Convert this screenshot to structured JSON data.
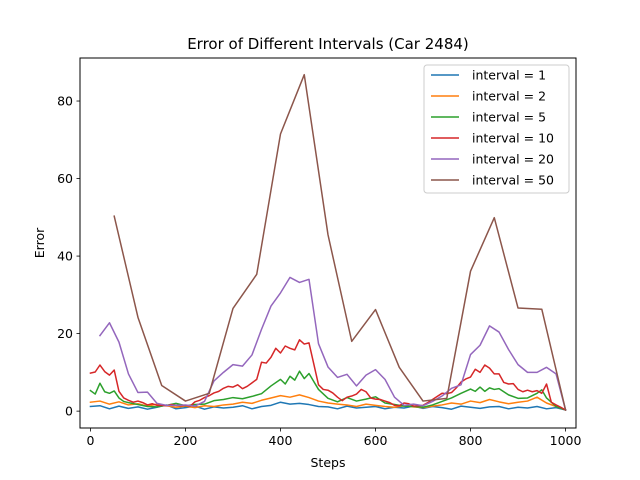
{
  "chart_data": {
    "type": "line",
    "title": "Error of Different Intervals (Car 2484)",
    "xlabel": "Steps",
    "ylabel": "Error",
    "xlim": [
      -22,
      1022
    ],
    "ylim": [
      -4.35,
      91.1
    ],
    "xticks": [
      0,
      200,
      400,
      600,
      800,
      1000
    ],
    "yticks": [
      0,
      20,
      40,
      60,
      80
    ],
    "grid": false,
    "legend_position": "top-right",
    "series": [
      {
        "name": "interval = 1",
        "color": "#1f77b4",
        "x": [
          0,
          20,
          40,
          60,
          80,
          100,
          120,
          140,
          160,
          180,
          200,
          220,
          240,
          260,
          280,
          300,
          320,
          340,
          360,
          380,
          400,
          420,
          440,
          460,
          480,
          500,
          520,
          540,
          560,
          580,
          600,
          620,
          640,
          660,
          680,
          700,
          720,
          740,
          760,
          780,
          800,
          820,
          840,
          860,
          880,
          900,
          920,
          940,
          960,
          980,
          1000
        ],
        "y": [
          1.2,
          1.4,
          0.6,
          1.3,
          0.7,
          1.1,
          0.5,
          1.0,
          1.6,
          0.6,
          0.9,
          1.3,
          0.5,
          1.1,
          0.8,
          1.0,
          1.4,
          0.6,
          1.2,
          1.5,
          2.3,
          1.8,
          2.0,
          1.7,
          1.2,
          1.1,
          0.6,
          1.3,
          0.8,
          1.0,
          1.2,
          0.6,
          1.0,
          0.8,
          1.3,
          0.7,
          1.2,
          0.9,
          0.5,
          1.3,
          1.0,
          0.7,
          1.1,
          1.2,
          0.6,
          1.0,
          0.8,
          1.2,
          0.6,
          0.9,
          0.3
        ]
      },
      {
        "name": "interval = 2",
        "color": "#ff7f0e",
        "x": [
          0,
          20,
          40,
          60,
          80,
          100,
          120,
          140,
          160,
          180,
          200,
          220,
          240,
          260,
          280,
          300,
          320,
          340,
          360,
          380,
          400,
          420,
          440,
          460,
          480,
          500,
          520,
          540,
          560,
          580,
          600,
          620,
          640,
          660,
          680,
          700,
          720,
          740,
          760,
          780,
          800,
          820,
          840,
          860,
          880,
          900,
          920,
          940,
          960,
          980,
          1000
        ],
        "y": [
          2.3,
          2.6,
          1.8,
          2.4,
          1.6,
          1.9,
          1.3,
          1.8,
          1.4,
          1.0,
          1.3,
          0.9,
          1.4,
          1.2,
          1.6,
          1.8,
          2.3,
          2.0,
          2.8,
          3.4,
          4.0,
          3.6,
          4.2,
          3.5,
          2.6,
          2.1,
          1.8,
          1.6,
          1.2,
          1.8,
          1.5,
          1.2,
          1.0,
          1.4,
          1.1,
          0.9,
          1.3,
          1.6,
          2.1,
          1.8,
          2.6,
          2.2,
          3.0,
          2.4,
          1.9,
          2.3,
          2.6,
          3.6,
          2.1,
          1.2,
          0.3
        ]
      },
      {
        "name": "interval = 5",
        "color": "#2ca02c",
        "x": [
          0,
          10,
          20,
          30,
          40,
          50,
          60,
          70,
          80,
          100,
          120,
          140,
          160,
          180,
          200,
          220,
          240,
          260,
          280,
          300,
          320,
          340,
          360,
          380,
          400,
          410,
          420,
          430,
          440,
          450,
          460,
          480,
          500,
          520,
          540,
          560,
          580,
          600,
          620,
          640,
          660,
          680,
          700,
          720,
          740,
          760,
          780,
          800,
          810,
          820,
          830,
          840,
          850,
          860,
          880,
          900,
          920,
          940,
          950,
          960,
          980,
          1000
        ],
        "y": [
          5.3,
          4.4,
          7.2,
          5.0,
          4.6,
          5.2,
          3.4,
          2.5,
          2.2,
          1.7,
          1.2,
          1.1,
          1.5,
          2.0,
          1.4,
          1.7,
          1.8,
          2.7,
          3.0,
          3.5,
          3.2,
          3.8,
          4.5,
          6.5,
          8.2,
          7.0,
          9.0,
          8.0,
          10.3,
          8.4,
          9.7,
          5.6,
          3.3,
          2.4,
          3.5,
          2.6,
          3.1,
          3.7,
          2.1,
          1.7,
          1.3,
          1.2,
          1.0,
          1.6,
          2.5,
          3.4,
          4.6,
          5.7,
          5.1,
          6.2,
          5.1,
          6.0,
          5.6,
          5.8,
          4.2,
          3.3,
          3.4,
          4.6,
          5.5,
          3.4,
          1.2,
          0.3
        ]
      },
      {
        "name": "interval = 10",
        "color": "#d62728",
        "x": [
          0,
          10,
          20,
          30,
          40,
          50,
          60,
          70,
          80,
          90,
          100,
          110,
          120,
          130,
          140,
          150,
          160,
          170,
          180,
          190,
          200,
          210,
          220,
          230,
          240,
          250,
          260,
          270,
          280,
          290,
          300,
          310,
          320,
          330,
          340,
          350,
          360,
          370,
          380,
          390,
          400,
          410,
          420,
          430,
          440,
          450,
          460,
          470,
          480,
          490,
          500,
          510,
          520,
          530,
          540,
          550,
          560,
          570,
          580,
          590,
          600,
          610,
          620,
          630,
          640,
          650,
          660,
          670,
          680,
          690,
          700,
          710,
          720,
          730,
          740,
          750,
          760,
          770,
          780,
          790,
          800,
          810,
          820,
          830,
          840,
          850,
          860,
          870,
          880,
          890,
          900,
          910,
          920,
          930,
          940,
          950,
          960,
          970,
          980,
          990,
          1000
        ],
        "y": [
          9.8,
          10.1,
          11.9,
          10.2,
          9.3,
          10.6,
          5.1,
          3.4,
          2.8,
          2.3,
          2.6,
          2.2,
          1.6,
          1.9,
          1.5,
          1.5,
          1.4,
          1.7,
          1.5,
          1.4,
          1.5,
          1.3,
          2.4,
          2.8,
          3.5,
          4.0,
          4.7,
          5.1,
          5.9,
          6.4,
          6.2,
          6.8,
          5.8,
          6.4,
          7.3,
          8.2,
          12.6,
          12.4,
          13.9,
          16.2,
          15.0,
          16.8,
          16.2,
          15.8,
          18.4,
          17.3,
          17.6,
          12.2,
          6.8,
          5.6,
          5.4,
          4.7,
          3.6,
          2.7,
          3.6,
          3.9,
          4.4,
          5.6,
          5.0,
          3.4,
          3.1,
          3.0,
          2.6,
          2.2,
          1.5,
          1.4,
          2.1,
          1.9,
          1.3,
          1.4,
          1.5,
          2.2,
          3.0,
          3.8,
          4.6,
          4.5,
          4.8,
          6.0,
          7.5,
          8.3,
          8.8,
          10.8,
          10.0,
          11.9,
          11.1,
          9.6,
          9.6,
          7.4,
          7.0,
          7.1,
          5.6,
          5.0,
          5.4,
          5.0,
          5.3,
          4.6,
          7.0,
          2.3,
          1.6,
          1.0,
          0.3
        ]
      },
      {
        "name": "interval = 20",
        "color": "#9467bd",
        "x": [
          20,
          40,
          60,
          80,
          100,
          120,
          140,
          160,
          180,
          200,
          220,
          240,
          260,
          280,
          300,
          320,
          340,
          360,
          380,
          400,
          420,
          440,
          460,
          480,
          500,
          520,
          540,
          560,
          580,
          600,
          620,
          640,
          660,
          680,
          700,
          720,
          740,
          760,
          780,
          800,
          820,
          840,
          860,
          880,
          900,
          920,
          940,
          960,
          980,
          1000
        ],
        "y": [
          19.5,
          22.8,
          17.8,
          9.6,
          4.8,
          4.9,
          2.0,
          1.5,
          1.5,
          1.6,
          1.3,
          2.5,
          7.8,
          10.0,
          12.0,
          11.6,
          14.5,
          21.1,
          27.1,
          30.5,
          34.5,
          33.2,
          34.0,
          17.4,
          11.4,
          8.7,
          9.5,
          6.5,
          9.3,
          10.7,
          8.2,
          3.6,
          1.5,
          1.8,
          1.4,
          2.5,
          3.9,
          5.9,
          6.8,
          14.6,
          17.0,
          22.0,
          20.4,
          15.9,
          12.0,
          10.0,
          10.0,
          11.3,
          9.6,
          0.3
        ]
      },
      {
        "name": "interval = 50",
        "color": "#8c564b",
        "x": [
          50,
          100,
          150,
          200,
          250,
          300,
          350,
          400,
          450,
          500,
          550,
          600,
          650,
          700,
          750,
          800,
          850,
          900,
          950,
          1000
        ],
        "y": [
          50.3,
          24.2,
          6.6,
          2.6,
          4.6,
          26.5,
          35.3,
          71.5,
          86.8,
          45.5,
          18.0,
          26.2,
          11.3,
          2.6,
          3.3,
          36.1,
          49.9,
          26.6,
          26.3,
          0.3
        ]
      }
    ]
  }
}
